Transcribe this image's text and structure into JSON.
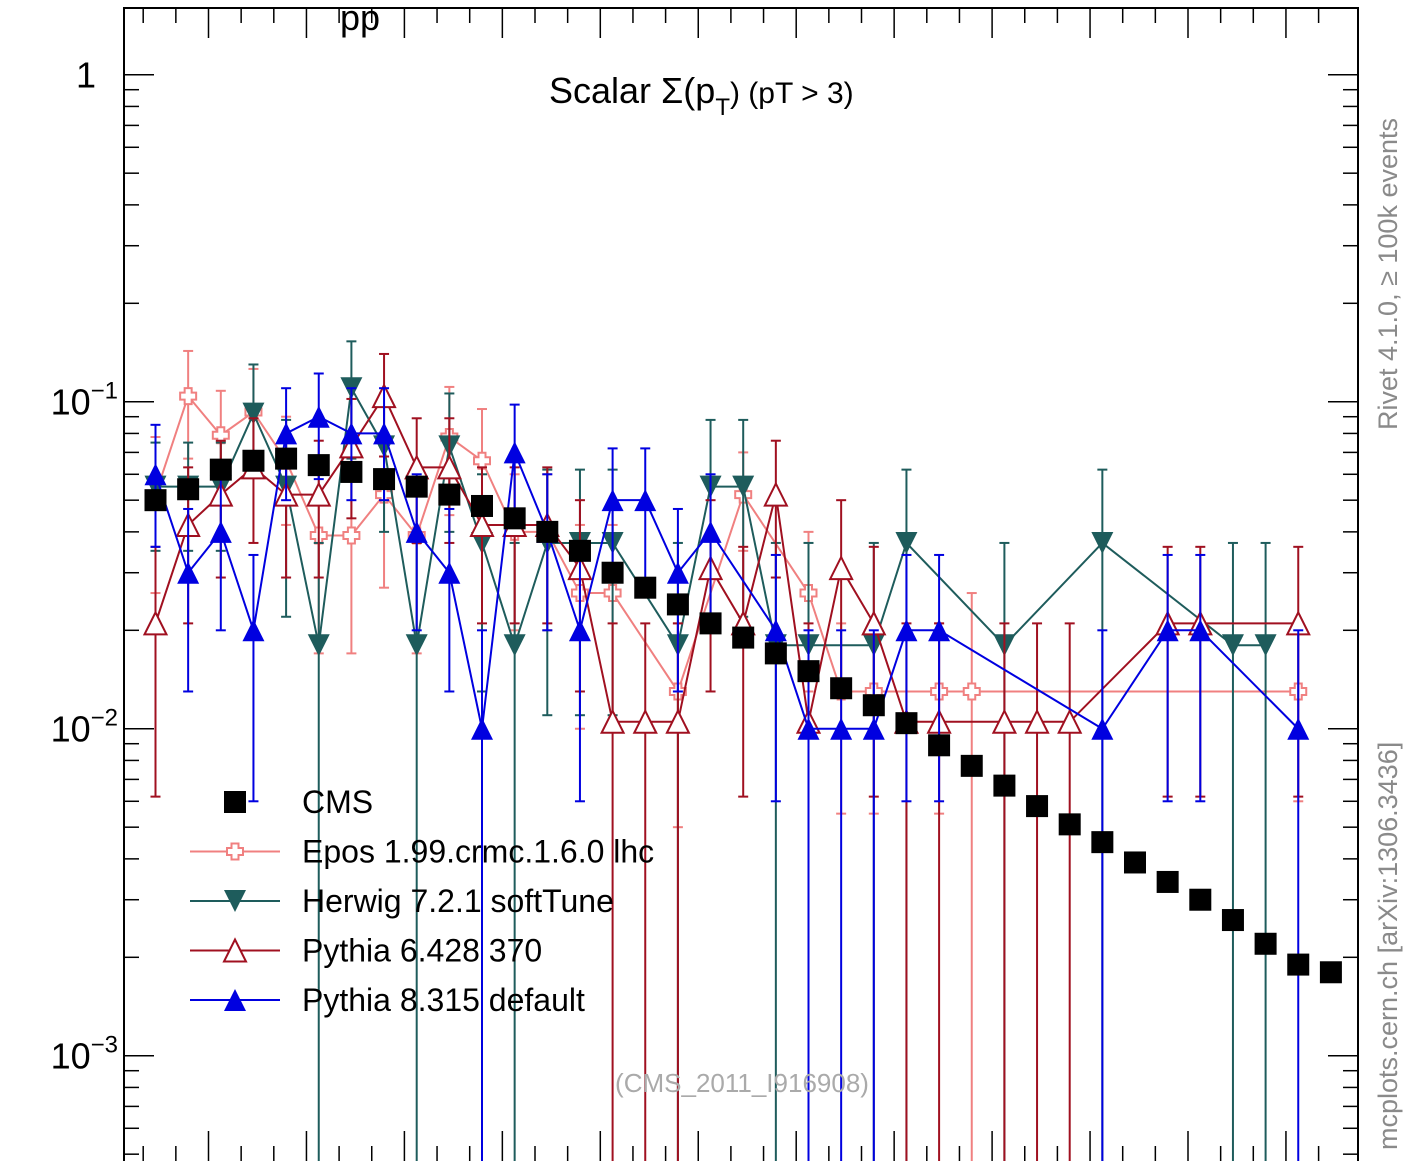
{
  "top_title_fragment": "pp",
  "side_label_top": "Rivet 4.1.0, ≥ 100k events",
  "side_label_bottom": "mcplots.cern.ch [arXiv:1306.3436]",
  "watermark": "(CMS_2011_I916908)",
  "chart_data": {
    "type": "scatter",
    "title": "Scalar Σ(pT) (pT > 3)",
    "title_parts": {
      "prefix": "Scalar Σ(p",
      "sub": "T",
      "suffix": ") (pT >  3)"
    },
    "y_scale": "log",
    "ylim": [
      0.0006,
      1.6
    ],
    "y_tick_labels": [
      {
        "value": 1,
        "base": "1",
        "exp": ""
      },
      {
        "value": 0.1,
        "base": "10",
        "exp": "−1"
      },
      {
        "value": 0.01,
        "base": "10",
        "exp": "−2"
      },
      {
        "value": 0.001,
        "base": "10",
        "exp": "−3"
      }
    ],
    "x": [
      1,
      2,
      3,
      4,
      5,
      6,
      7,
      8,
      9,
      10,
      11,
      12,
      13,
      14,
      15,
      16,
      17,
      18,
      19,
      20,
      21,
      22,
      23,
      24,
      25,
      26,
      27,
      28,
      29,
      30,
      31,
      32,
      33,
      34,
      35,
      36,
      37
    ],
    "legend_position": "bottom-left",
    "series": [
      {
        "name": "CMS",
        "color": "#000000",
        "marker": "square",
        "line": false,
        "values": [
          0.05,
          0.054,
          0.062,
          0.066,
          0.067,
          0.064,
          0.061,
          0.058,
          0.055,
          0.052,
          0.048,
          0.044,
          0.04,
          0.035,
          0.03,
          0.027,
          0.024,
          0.021,
          0.019,
          0.017,
          0.015,
          0.0133,
          0.0118,
          0.0104,
          0.0089,
          0.0077,
          0.0067,
          0.0058,
          0.0051,
          0.0045,
          0.0039,
          0.0034,
          0.003,
          0.0026,
          0.0022,
          0.0019,
          0.0018
        ]
      },
      {
        "name": "Epos 1.99.crmc.1.6.0 lhc",
        "color": "#f08080",
        "marker": "open-cross",
        "line": true,
        "points": [
          {
            "x": 1,
            "y": 0.052,
            "lo": 0.026,
            "hi": 0.078
          },
          {
            "x": 2,
            "y": 0.104,
            "lo": 0.067,
            "hi": 0.143
          },
          {
            "x": 3,
            "y": 0.079,
            "lo": 0.05,
            "hi": 0.108
          },
          {
            "x": 4,
            "y": 0.093,
            "lo": 0.06,
            "hi": 0.126
          },
          {
            "x": 5,
            "y": 0.066,
            "lo": 0.042,
            "hi": 0.09
          },
          {
            "x": 6,
            "y": 0.039,
            "lo": 0.017,
            "hi": 0.061
          },
          {
            "x": 7,
            "y": 0.039,
            "lo": 0.017,
            "hi": 0.061
          },
          {
            "x": 8,
            "y": 0.052,
            "lo": 0.027,
            "hi": 0.078
          },
          {
            "x": 9,
            "y": 0.039,
            "lo": 0.017,
            "hi": 0.061
          },
          {
            "x": 10,
            "y": 0.078,
            "lo": 0.045,
            "hi": 0.111
          },
          {
            "x": 11,
            "y": 0.066,
            "lo": 0.037,
            "hi": 0.095
          },
          {
            "x": 12,
            "y": 0.04,
            "lo": 0.02,
            "hi": 0.06
          },
          {
            "x": 13,
            "y": 0.04,
            "lo": 0.02,
            "hi": 0.06
          },
          {
            "x": 14,
            "y": 0.026,
            "lo": 0.01,
            "hi": 0.042
          },
          {
            "x": 15,
            "y": 0.026,
            "lo": 0.01,
            "hi": 0.042
          },
          {
            "x": 17,
            "y": 0.013,
            "lo": 0.005,
            "hi": 0.021
          },
          {
            "x": 19,
            "y": 0.052,
            "lo": 0.035,
            "hi": 0.07
          },
          {
            "x": 21,
            "y": 0.026,
            "lo": 0.013,
            "hi": 0.04
          },
          {
            "x": 22,
            "y": 0.013,
            "lo": 0.0055,
            "hi": 0.021
          },
          {
            "x": 23,
            "y": 0.013,
            "lo": 0.0055,
            "hi": 0.021
          },
          {
            "x": 25,
            "y": 0.013,
            "lo": 0.0055,
            "hi": 0.021
          },
          {
            "x": 26,
            "y": 0.013,
            "lo": 0.0004,
            "hi": 0.026
          },
          {
            "x": 36,
            "y": 0.013,
            "lo": 0.006,
            "hi": 0.02
          }
        ]
      },
      {
        "name": "Herwig 7.2.1 softTune",
        "color": "#1e5c5c",
        "marker": "triangle-down",
        "line": true,
        "points": [
          {
            "x": 1,
            "y": 0.055,
            "lo": 0.035,
            "hi": 0.075
          },
          {
            "x": 2,
            "y": 0.055,
            "lo": 0.035,
            "hi": 0.075
          },
          {
            "x": 3,
            "y": 0.055,
            "lo": 0.035,
            "hi": 0.075
          },
          {
            "x": 4,
            "y": 0.092,
            "lo": 0.06,
            "hi": 0.13
          },
          {
            "x": 5,
            "y": 0.055,
            "lo": 0.022,
            "hi": 0.088
          },
          {
            "x": 6,
            "y": 0.018,
            "lo": 0.0004,
            "hi": 0.037
          },
          {
            "x": 7,
            "y": 0.11,
            "lo": 0.067,
            "hi": 0.153
          },
          {
            "x": 8,
            "y": 0.073,
            "lo": 0.04,
            "hi": 0.106
          },
          {
            "x": 9,
            "y": 0.018,
            "lo": 0.0004,
            "hi": 0.037
          },
          {
            "x": 10,
            "y": 0.073,
            "lo": 0.04,
            "hi": 0.106
          },
          {
            "x": 11,
            "y": 0.037,
            "lo": 0.013,
            "hi": 0.06
          },
          {
            "x": 12,
            "y": 0.018,
            "lo": 0.0004,
            "hi": 0.037
          },
          {
            "x": 13,
            "y": 0.037,
            "lo": 0.011,
            "hi": 0.062
          },
          {
            "x": 14,
            "y": 0.037,
            "lo": 0.011,
            "hi": 0.062
          },
          {
            "x": 15,
            "y": 0.037,
            "lo": 0.011,
            "hi": 0.062
          },
          {
            "x": 17,
            "y": 0.018,
            "lo": 0.0004,
            "hi": 0.037
          },
          {
            "x": 18,
            "y": 0.055,
            "lo": 0.022,
            "hi": 0.088
          },
          {
            "x": 19,
            "y": 0.055,
            "lo": 0.022,
            "hi": 0.088
          },
          {
            "x": 20,
            "y": 0.018,
            "lo": 0.0004,
            "hi": 0.037
          },
          {
            "x": 21,
            "y": 0.018,
            "lo": 0.0004,
            "hi": 0.037
          },
          {
            "x": 23,
            "y": 0.018,
            "lo": 0.0004,
            "hi": 0.037
          },
          {
            "x": 24,
            "y": 0.037,
            "lo": 0.0004,
            "hi": 0.062
          },
          {
            "x": 27,
            "y": 0.018,
            "lo": 0.0004,
            "hi": 0.037
          },
          {
            "x": 30,
            "y": 0.037,
            "lo": 0.0004,
            "hi": 0.062
          },
          {
            "x": 34,
            "y": 0.018,
            "lo": 0.0004,
            "hi": 0.037
          },
          {
            "x": 35,
            "y": 0.018,
            "lo": 0.0004,
            "hi": 0.037
          }
        ]
      },
      {
        "name": "Pythia 6.428 370",
        "color": "#a01020",
        "marker": "open-triangle-up",
        "line": true,
        "points": [
          {
            "x": 1,
            "y": 0.021,
            "lo": 0.0062,
            "hi": 0.036
          },
          {
            "x": 2,
            "y": 0.042,
            "lo": 0.021,
            "hi": 0.063
          },
          {
            "x": 3,
            "y": 0.052,
            "lo": 0.029,
            "hi": 0.076
          },
          {
            "x": 4,
            "y": 0.063,
            "lo": 0.037,
            "hi": 0.089
          },
          {
            "x": 5,
            "y": 0.052,
            "lo": 0.029,
            "hi": 0.076
          },
          {
            "x": 6,
            "y": 0.052,
            "lo": 0.029,
            "hi": 0.076
          },
          {
            "x": 7,
            "y": 0.073,
            "lo": 0.044,
            "hi": 0.102
          },
          {
            "x": 8,
            "y": 0.104,
            "lo": 0.068,
            "hi": 0.14
          },
          {
            "x": 9,
            "y": 0.063,
            "lo": 0.037,
            "hi": 0.089
          },
          {
            "x": 10,
            "y": 0.063,
            "lo": 0.037,
            "hi": 0.089
          },
          {
            "x": 11,
            "y": 0.042,
            "lo": 0.021,
            "hi": 0.063
          },
          {
            "x": 12,
            "y": 0.042,
            "lo": 0.021,
            "hi": 0.063
          },
          {
            "x": 13,
            "y": 0.042,
            "lo": 0.021,
            "hi": 0.063
          },
          {
            "x": 14,
            "y": 0.031,
            "lo": 0.013,
            "hi": 0.05
          },
          {
            "x": 15,
            "y": 0.0105,
            "lo": 0.0004,
            "hi": 0.021
          },
          {
            "x": 16,
            "y": 0.0105,
            "lo": 0.0004,
            "hi": 0.021
          },
          {
            "x": 17,
            "y": 0.0105,
            "lo": 0.0004,
            "hi": 0.021
          },
          {
            "x": 18,
            "y": 0.031,
            "lo": 0.013,
            "hi": 0.05
          },
          {
            "x": 19,
            "y": 0.021,
            "lo": 0.0062,
            "hi": 0.036
          },
          {
            "x": 20,
            "y": 0.052,
            "lo": 0.029,
            "hi": 0.076
          },
          {
            "x": 21,
            "y": 0.0105,
            "lo": 0.0004,
            "hi": 0.021
          },
          {
            "x": 22,
            "y": 0.031,
            "lo": 0.013,
            "hi": 0.05
          },
          {
            "x": 23,
            "y": 0.021,
            "lo": 0.0062,
            "hi": 0.036
          },
          {
            "x": 24,
            "y": 0.0105,
            "lo": 0.0004,
            "hi": 0.021
          },
          {
            "x": 25,
            "y": 0.0105,
            "lo": 0.0004,
            "hi": 0.021
          },
          {
            "x": 27,
            "y": 0.0105,
            "lo": 0.0004,
            "hi": 0.021
          },
          {
            "x": 28,
            "y": 0.0105,
            "lo": 0.0004,
            "hi": 0.021
          },
          {
            "x": 29,
            "y": 0.0105,
            "lo": 0.0004,
            "hi": 0.021
          },
          {
            "x": 32,
            "y": 0.021,
            "lo": 0.0062,
            "hi": 0.036
          },
          {
            "x": 33,
            "y": 0.021,
            "lo": 0.0062,
            "hi": 0.036
          },
          {
            "x": 36,
            "y": 0.021,
            "lo": 0.0062,
            "hi": 0.036
          }
        ]
      },
      {
        "name": "Pythia 8.315 default",
        "color": "#0000e0",
        "marker": "triangle-up",
        "line": true,
        "points": [
          {
            "x": 1,
            "y": 0.06,
            "lo": 0.036,
            "hi": 0.085
          },
          {
            "x": 2,
            "y": 0.03,
            "lo": 0.013,
            "hi": 0.047
          },
          {
            "x": 3,
            "y": 0.04,
            "lo": 0.02,
            "hi": 0.06
          },
          {
            "x": 4,
            "y": 0.02,
            "lo": 0.006,
            "hi": 0.034
          },
          {
            "x": 5,
            "y": 0.08,
            "lo": 0.05,
            "hi": 0.11
          },
          {
            "x": 6,
            "y": 0.09,
            "lo": 0.058,
            "hi": 0.122
          },
          {
            "x": 7,
            "y": 0.08,
            "lo": 0.05,
            "hi": 0.11
          },
          {
            "x": 8,
            "y": 0.08,
            "lo": 0.05,
            "hi": 0.11
          },
          {
            "x": 9,
            "y": 0.04,
            "lo": 0.02,
            "hi": 0.06
          },
          {
            "x": 10,
            "y": 0.03,
            "lo": 0.013,
            "hi": 0.047
          },
          {
            "x": 11,
            "y": 0.01,
            "lo": 0.0004,
            "hi": 0.02
          },
          {
            "x": 12,
            "y": 0.07,
            "lo": 0.042,
            "hi": 0.098
          },
          {
            "x": 13,
            "y": 0.04,
            "lo": 0.02,
            "hi": 0.06
          },
          {
            "x": 14,
            "y": 0.02,
            "lo": 0.006,
            "hi": 0.034
          },
          {
            "x": 15,
            "y": 0.05,
            "lo": 0.028,
            "hi": 0.072
          },
          {
            "x": 16,
            "y": 0.05,
            "lo": 0.028,
            "hi": 0.072
          },
          {
            "x": 17,
            "y": 0.03,
            "lo": 0.013,
            "hi": 0.047
          },
          {
            "x": 18,
            "y": 0.04,
            "lo": 0.02,
            "hi": 0.06
          },
          {
            "x": 20,
            "y": 0.02,
            "lo": 0.006,
            "hi": 0.034
          },
          {
            "x": 21,
            "y": 0.01,
            "lo": 0.0004,
            "hi": 0.02
          },
          {
            "x": 22,
            "y": 0.01,
            "lo": 0.0004,
            "hi": 0.02
          },
          {
            "x": 23,
            "y": 0.01,
            "lo": 0.0004,
            "hi": 0.02
          },
          {
            "x": 24,
            "y": 0.02,
            "lo": 0.006,
            "hi": 0.034
          },
          {
            "x": 25,
            "y": 0.02,
            "lo": 0.006,
            "hi": 0.034
          },
          {
            "x": 30,
            "y": 0.01,
            "lo": 0.0004,
            "hi": 0.02
          },
          {
            "x": 32,
            "y": 0.02,
            "lo": 0.006,
            "hi": 0.034
          },
          {
            "x": 33,
            "y": 0.02,
            "lo": 0.006,
            "hi": 0.034
          },
          {
            "x": 36,
            "y": 0.01,
            "lo": 0.0004,
            "hi": 0.02
          }
        ]
      }
    ]
  }
}
